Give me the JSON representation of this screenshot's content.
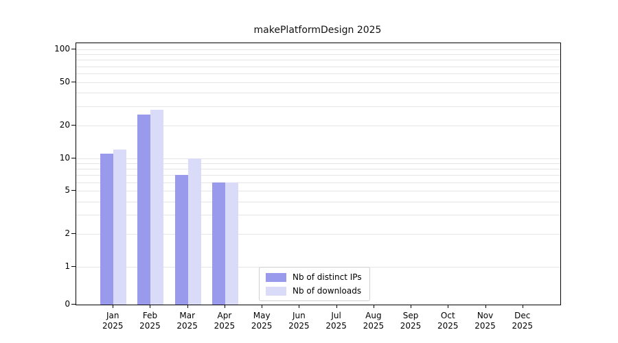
{
  "chart_data": {
    "type": "bar",
    "title": "makePlatformDesign 2025",
    "categories": [
      "Jan",
      "Feb",
      "Mar",
      "Apr",
      "May",
      "Jun",
      "Jul",
      "Aug",
      "Sep",
      "Oct",
      "Nov",
      "Dec"
    ],
    "category_year": "2025",
    "series": [
      {
        "name": "Nb of distinct IPs",
        "color": "#9a9aed",
        "values": [
          11,
          25,
          7,
          6,
          0,
          0,
          0,
          0,
          0,
          0,
          0,
          0
        ]
      },
      {
        "name": "Nb of downloads",
        "color": "#dadbf8",
        "values": [
          12,
          28,
          10,
          6,
          0,
          0,
          0,
          0,
          0,
          0,
          0,
          0
        ]
      }
    ],
    "yticks": [
      0,
      1,
      2,
      5,
      10,
      20,
      50,
      100
    ],
    "yscale": "symlog",
    "ylim": [
      0,
      112
    ],
    "xlabel": "",
    "ylabel": "",
    "grid": "horizontal",
    "legend_position": "lower-center"
  }
}
